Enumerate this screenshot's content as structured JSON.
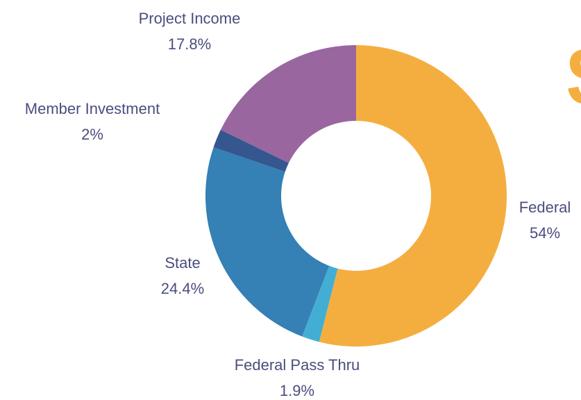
{
  "chart_data": {
    "type": "donut",
    "categories": [
      "Federal",
      "Federal Pass Thru",
      "State",
      "Member Investment",
      "Project Income"
    ],
    "values": [
      54,
      1.9,
      24.4,
      2,
      17.8
    ],
    "value_labels": [
      "54%",
      "1.9%",
      "24.4%",
      "2%",
      "17.8%"
    ],
    "colors": [
      "#f4ae40",
      "#43aed3",
      "#3580b4",
      "#35568f",
      "#9966a0"
    ],
    "annotation": "$"
  }
}
